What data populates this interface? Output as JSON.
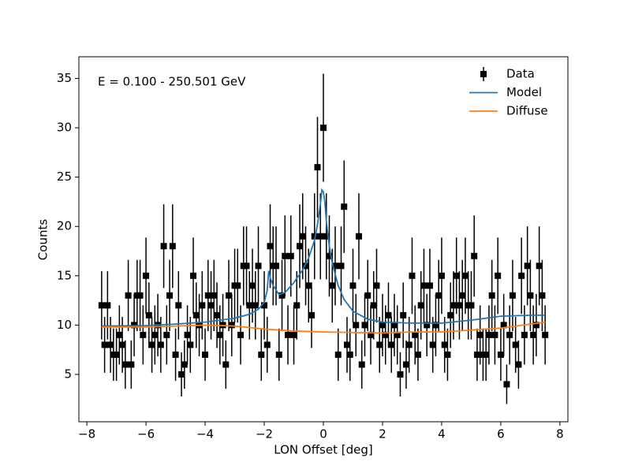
{
  "chart_data": {
    "type": "errorbar",
    "annotation": "E = 0.100 - 250.501 GeV",
    "xlabel": "LON Offset [deg]",
    "ylabel": "Counts",
    "xlim": [
      -8.27,
      8.27
    ],
    "ylim": [
      0.2,
      37.2
    ],
    "xticks": [
      {
        "value": -8,
        "label": "−8"
      },
      {
        "value": -6,
        "label": "−6"
      },
      {
        "value": -4,
        "label": "−4"
      },
      {
        "value": -2,
        "label": "−2"
      },
      0,
      2,
      4,
      6,
      8
    ],
    "yticks": [
      5,
      10,
      15,
      20,
      25,
      30,
      35
    ],
    "legend": "upper right",
    "series": [
      {
        "name": "Data",
        "color": "#000000",
        "x": [
          -7.5,
          -7.4,
          -7.3,
          -7.2,
          -7.1,
          -7.0,
          -6.9,
          -6.8,
          -6.7,
          -6.6,
          -6.5,
          -6.4,
          -6.3,
          -6.2,
          -6.1,
          -6.0,
          -5.9,
          -5.8,
          -5.7,
          -5.6,
          -5.5,
          -5.4,
          -5.3,
          -5.2,
          -5.1,
          -5.0,
          -4.9,
          -4.8,
          -4.7,
          -4.6,
          -4.5,
          -4.4,
          -4.3,
          -4.2,
          -4.1,
          -4.0,
          -3.9,
          -3.8,
          -3.7,
          -3.6,
          -3.5,
          -3.4,
          -3.3,
          -3.2,
          -3.1,
          -3.0,
          -2.9,
          -2.8,
          -2.7,
          -2.6,
          -2.5,
          -2.4,
          -2.3,
          -2.2,
          -2.1,
          -2.0,
          -1.9,
          -1.8,
          -1.7,
          -1.6,
          -1.5,
          -1.4,
          -1.3,
          -1.2,
          -1.1,
          -1.0,
          -0.9,
          -0.8,
          -0.7,
          -0.6,
          -0.5,
          -0.4,
          -0.3,
          -0.2,
          -0.1,
          0.0,
          0.1,
          0.2,
          0.3,
          0.4,
          0.5,
          0.6,
          0.7,
          0.8,
          0.9,
          1.0,
          1.1,
          1.2,
          1.3,
          1.4,
          1.5,
          1.6,
          1.7,
          1.8,
          1.9,
          2.0,
          2.1,
          2.2,
          2.3,
          2.4,
          2.5,
          2.6,
          2.7,
          2.8,
          2.9,
          3.0,
          3.1,
          3.2,
          3.3,
          3.4,
          3.5,
          3.6,
          3.7,
          3.8,
          3.9,
          4.0,
          4.1,
          4.2,
          4.3,
          4.4,
          4.5,
          4.6,
          4.7,
          4.8,
          4.9,
          5.0,
          5.1,
          5.2,
          5.3,
          5.4,
          5.5,
          5.6,
          5.7,
          5.8,
          5.9,
          6.0,
          6.1,
          6.2,
          6.3,
          6.4,
          6.5,
          6.6,
          6.7,
          6.8,
          6.9,
          7.0,
          7.1,
          7.2,
          7.3,
          7.4,
          7.5
        ],
        "values": [
          12,
          8,
          12,
          8,
          7,
          7,
          9,
          8,
          6,
          13,
          6,
          10,
          13,
          13,
          9,
          15,
          11,
          8,
          9,
          10,
          8,
          18,
          9,
          13,
          18,
          7,
          12,
          5,
          6,
          9,
          8,
          15,
          11,
          10,
          12,
          7,
          13,
          12,
          13,
          11,
          9,
          10,
          6,
          13,
          10,
          14,
          14,
          9,
          16,
          16,
          12,
          14,
          12,
          16,
          7,
          12,
          8,
          18,
          16,
          16,
          7,
          13,
          17,
          9,
          17,
          9,
          12,
          18,
          19,
          16,
          14,
          11,
          19,
          26,
          19,
          30,
          19,
          17,
          14,
          16,
          7,
          16,
          22,
          8,
          7,
          14,
          10,
          19,
          6,
          10,
          13,
          9,
          12,
          14,
          8,
          10,
          9,
          11,
          8,
          10,
          9,
          5,
          11,
          6,
          8,
          15,
          9,
          7,
          12,
          14,
          10,
          14,
          8,
          10,
          13,
          15,
          8,
          7,
          11,
          12,
          15,
          12,
          13,
          15,
          12,
          12,
          17,
          7,
          9,
          7,
          7,
          9,
          13,
          9,
          15,
          7,
          10,
          4,
          9,
          13,
          8,
          6,
          15,
          9,
          16,
          13,
          9,
          10,
          16,
          13,
          9
        ],
        "yerr": [
          3.46,
          2.83,
          3.46,
          2.83,
          2.65,
          2.65,
          3,
          2.83,
          2.45,
          3.61,
          2.45,
          3.16,
          3.61,
          3.61,
          3,
          3.87,
          3.32,
          2.83,
          3,
          3.16,
          2.83,
          4.24,
          3,
          3.61,
          4.24,
          2.65,
          3.46,
          2.24,
          2.45,
          3,
          2.83,
          3.87,
          3.32,
          3.16,
          3.46,
          2.65,
          3.61,
          3.46,
          3.61,
          3.32,
          3,
          3.16,
          2.45,
          3.61,
          3.16,
          3.74,
          3.74,
          3,
          4,
          4,
          3.46,
          3.74,
          3.46,
          4,
          2.65,
          3.46,
          2.83,
          4.24,
          4,
          4,
          2.65,
          3.61,
          4.12,
          3,
          4.12,
          3,
          3.46,
          4.24,
          4.36,
          4,
          3.74,
          3.32,
          4.36,
          5.1,
          4.36,
          5.48,
          4.36,
          4.12,
          3.74,
          4,
          2.65,
          4,
          4.69,
          2.83,
          2.65,
          3.74,
          3.16,
          4.36,
          2.45,
          3.16,
          3.61,
          3,
          3.46,
          3.74,
          2.83,
          3.16,
          3,
          3.32,
          2.83,
          3.16,
          3,
          2.24,
          3.32,
          2.45,
          2.83,
          3.87,
          3,
          2.65,
          3.46,
          3.74,
          3.16,
          3.74,
          2.83,
          3.16,
          3.61,
          3.87,
          2.83,
          2.65,
          3.32,
          3.46,
          3.87,
          3.46,
          3.61,
          3.87,
          3.46,
          3.46,
          4.12,
          2.65,
          3,
          2.65,
          2.65,
          3,
          3.61,
          3,
          3.87,
          2.65,
          3.16,
          2,
          3,
          3.61,
          2.83,
          2.45,
          3.87,
          3,
          4,
          3.61,
          3,
          3.16,
          4,
          3.61,
          3
        ]
      },
      {
        "name": "Model",
        "color": "#1f77b4",
        "x": [
          -7.5,
          -6,
          -5,
          -4,
          -3,
          -2.5,
          -2.2,
          -2,
          -1.9,
          -1.85,
          -1.8,
          -1.7,
          -1.5,
          -1.3,
          -1,
          -0.7,
          -0.5,
          -0.3,
          -0.2,
          -0.1,
          -0.05,
          0,
          0.05,
          0.1,
          0.2,
          0.3,
          0.5,
          0.7,
          1,
          1.5,
          2,
          3,
          4,
          5,
          6,
          7,
          7.5
        ],
        "values": [
          9.9,
          9.95,
          10.1,
          10.3,
          10.7,
          11.1,
          11.6,
          12.3,
          13.5,
          15.5,
          14.8,
          14,
          13.1,
          13.3,
          14.3,
          15.6,
          16.8,
          18.6,
          20.2,
          22.3,
          23.7,
          23.5,
          22.5,
          20.5,
          18,
          16.3,
          14,
          12.6,
          11.4,
          10.6,
          10.3,
          10.2,
          10.2,
          10.5,
          10.9,
          11,
          11
        ]
      },
      {
        "name": "Diffuse",
        "color": "#ff7f0e",
        "x": [
          -7.5,
          -6,
          -5,
          -4,
          -3,
          -2,
          -1,
          0,
          1,
          2,
          3,
          4,
          5,
          6,
          7,
          7.5
        ],
        "values": [
          9.8,
          9.8,
          9.9,
          10,
          9.9,
          9.6,
          9.4,
          9.3,
          9.25,
          9.2,
          9.3,
          9.3,
          9.5,
          9.7,
          10.1,
          10.3
        ]
      }
    ]
  }
}
